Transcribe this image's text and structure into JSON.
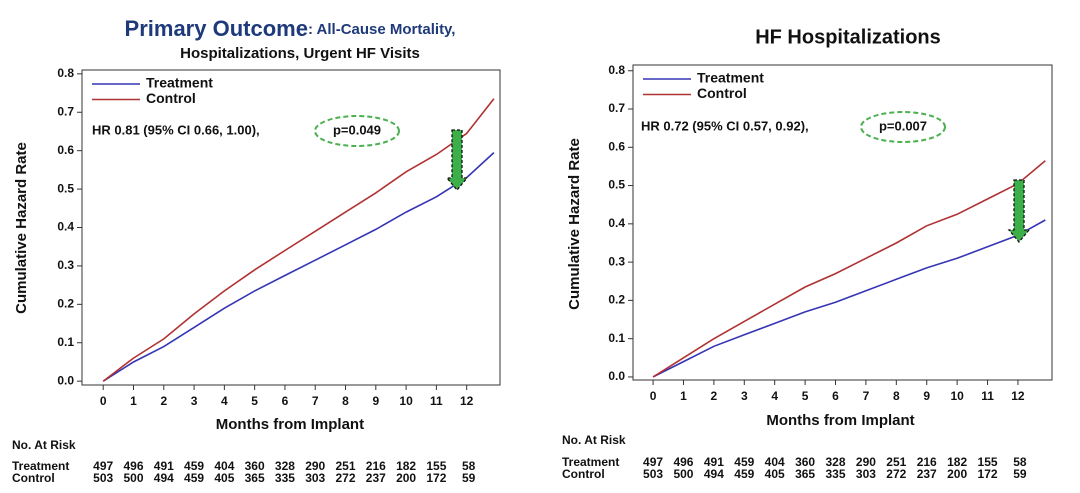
{
  "chart_data": [
    {
      "type": "line",
      "title": "Primary Outcome",
      "subtitle_lines": [
        ": All-Cause Mortality,",
        "Hospitalizations, Urgent HF Visits"
      ],
      "xlabel": "Months from Implant",
      "ylabel": "Cumulative Hazard Rate",
      "xlim": [
        -0.7,
        13.1
      ],
      "ylim": [
        -0.01,
        0.81
      ],
      "xticks": [
        0,
        1,
        2,
        3,
        4,
        5,
        6,
        7,
        8,
        9,
        10,
        11,
        12
      ],
      "yticks": [
        {
          "value": 0,
          "label": "0.0"
        },
        0.1,
        0.2,
        0.3,
        0.4,
        0.5,
        0.6,
        0.7,
        0.8
      ],
      "x": [
        0,
        1,
        2,
        3,
        4,
        5,
        6,
        7,
        8,
        9,
        10,
        11,
        12,
        12.9
      ],
      "series": [
        {
          "name": "Treatment",
          "color": "#3535b5",
          "values": [
            0,
            0.05,
            0.09,
            0.14,
            0.19,
            0.235,
            0.275,
            0.315,
            0.355,
            0.395,
            0.44,
            0.48,
            0.53,
            0.595
          ]
        },
        {
          "name": "Control",
          "color": "#b03232",
          "values": [
            0,
            0.06,
            0.11,
            0.175,
            0.235,
            0.29,
            0.34,
            0.39,
            0.44,
            0.49,
            0.545,
            0.59,
            0.645,
            0.735
          ]
        }
      ],
      "legend": "upper left",
      "annotations": [
        "HR 0.81  (95% CI 0.66,  1.00),",
        "p=0.049"
      ],
      "risk_table": {
        "title": "No. At Risk",
        "rows": [
          {
            "name": "Treatment",
            "values": [
              "497",
              "496",
              "491",
              "459",
              "404",
              "360",
              "328",
              "290",
              "251",
              "216",
              "182",
              "155",
              "58"
            ]
          },
          {
            "name": "Control",
            "values": [
              "503",
              "500",
              "494",
              "459",
              "405",
              "365",
              "335",
              "303",
              "272",
              "237",
              "200",
              "172",
              "59"
            ]
          }
        ]
      }
    },
    {
      "type": "line",
      "title": "HF Hospitalizations",
      "xlabel": "Months from Implant",
      "ylabel": "Cumulative Hazard Rate",
      "xlim": [
        -0.66,
        13.12
      ],
      "ylim": [
        -0.008,
        0.815
      ],
      "xticks": [
        0,
        1,
        2,
        3,
        4,
        5,
        6,
        7,
        8,
        9,
        10,
        11,
        12
      ],
      "yticks": [
        {
          "value": 0,
          "label": "0.0"
        },
        0.1,
        0.2,
        0.3,
        0.4,
        0.5,
        0.6,
        0.7,
        0.8
      ],
      "x": [
        0,
        1,
        2,
        3,
        4,
        5,
        6,
        7,
        8,
        9,
        10,
        11,
        12,
        12.9
      ],
      "series": [
        {
          "name": "Treatment",
          "color": "#3535b5",
          "values": [
            0,
            0.04,
            0.08,
            0.11,
            0.14,
            0.17,
            0.195,
            0.225,
            0.255,
            0.285,
            0.31,
            0.34,
            0.37,
            0.41
          ]
        },
        {
          "name": "Control",
          "color": "#b03232",
          "values": [
            0,
            0.05,
            0.1,
            0.145,
            0.19,
            0.235,
            0.27,
            0.31,
            0.35,
            0.395,
            0.425,
            0.465,
            0.505,
            0.565
          ]
        }
      ],
      "legend": "upper left",
      "annotations": [
        "HR 0.72  (95% CI 0.57,  0.92),",
        "p=0.007"
      ],
      "risk_table": {
        "title": "No. At Risk",
        "rows": [
          {
            "name": "Treatment",
            "values": [
              "497",
              "496",
              "491",
              "459",
              "404",
              "360",
              "328",
              "290",
              "251",
              "216",
              "182",
              "155",
              "58"
            ]
          },
          {
            "name": "Control",
            "values": [
              "503",
              "500",
              "494",
              "459",
              "405",
              "365",
              "335",
              "303",
              "272",
              "237",
              "200",
              "172",
              "59"
            ]
          }
        ]
      }
    }
  ]
}
